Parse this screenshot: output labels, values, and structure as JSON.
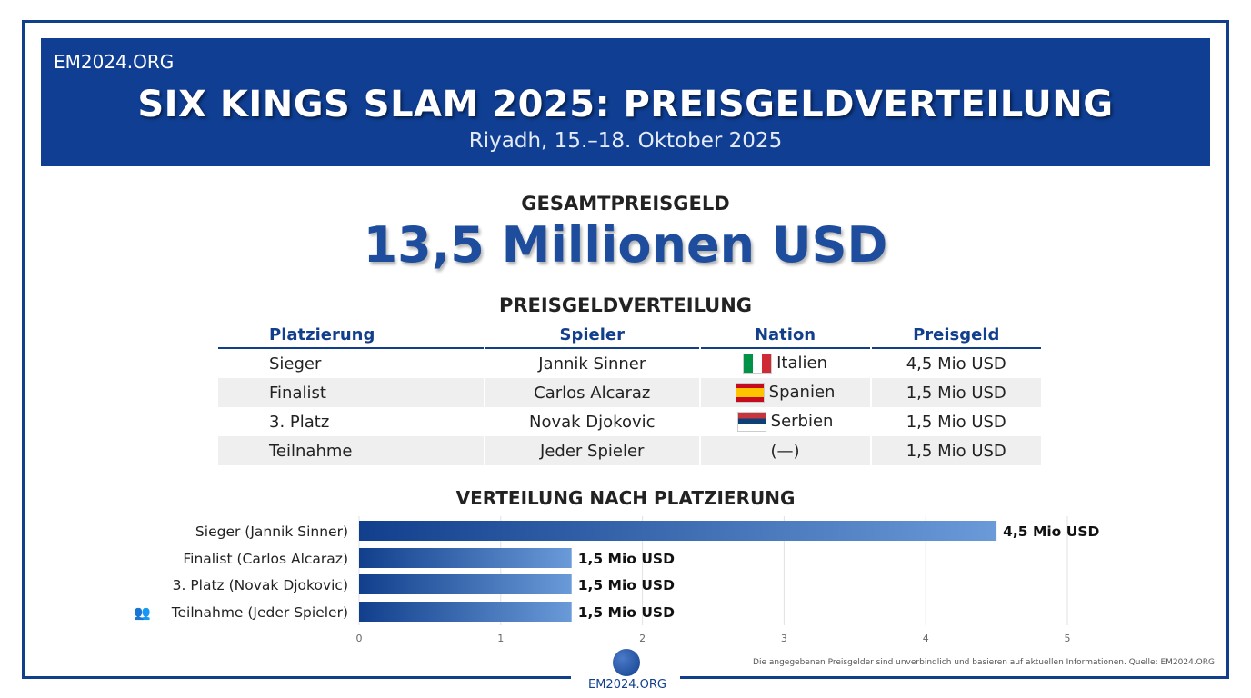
{
  "header": {
    "brand": "EM2024.ORG",
    "title": "SIX KINGS SLAM 2025: PREISGELDVERTEILUNG",
    "subtitle": "Riyadh, 15.–18. Oktober 2025"
  },
  "total": {
    "label": "GESAMTPREISGELD",
    "value": "13,5 Millionen USD"
  },
  "table": {
    "title": "PREISGELDVERTEILUNG",
    "headers": [
      "Platzierung",
      "Spieler",
      "Nation",
      "Preisgeld"
    ],
    "rows": [
      {
        "place": "Sieger",
        "player": "Jannik Sinner",
        "nation": "Italien",
        "flag": "italy-flag",
        "prize": "4,5 Mio USD"
      },
      {
        "place": "Finalist",
        "player": "Carlos Alcaraz",
        "nation": "Spanien",
        "flag": "spain-flag",
        "prize": "1,5 Mio USD"
      },
      {
        "place": "3. Platz",
        "player": "Novak Djokovic",
        "nation": "Serbien",
        "flag": "serbia-flag",
        "prize": "1,5 Mio USD"
      },
      {
        "place": "Teilnahme",
        "player": "Jeder Spieler",
        "nation": "(—)",
        "flag": "",
        "prize": "1,5 Mio USD"
      }
    ]
  },
  "chart_data": {
    "type": "bar",
    "orientation": "horizontal",
    "title": "VERTEILUNG NACH PLATZIERUNG",
    "categories": [
      "Sieger (Jannik Sinner)",
      "Finalist (Carlos Alcaraz)",
      "3. Platz (Novak Djokovic)",
      "Teilnahme (Jeder Spieler)"
    ],
    "values": [
      4.5,
      1.5,
      1.5,
      1.5
    ],
    "data_labels": [
      "4,5 Mio USD",
      "1,5 Mio USD",
      "1,5 Mio USD",
      "1,5 Mio USD"
    ],
    "xlim": [
      0,
      5
    ],
    "xticks": [
      "0",
      "1",
      "2",
      "3",
      "4",
      "5"
    ],
    "grid": true,
    "bar_color": "#123f8c",
    "bar_color_end": "#6a9ad8"
  },
  "footer": {
    "note": "Die angegebenen Preisgelder sind unverbindlich und basieren auf aktuellen Informationen. Quelle: EM2024.ORG",
    "logo_text": "EM2024.ORG"
  }
}
